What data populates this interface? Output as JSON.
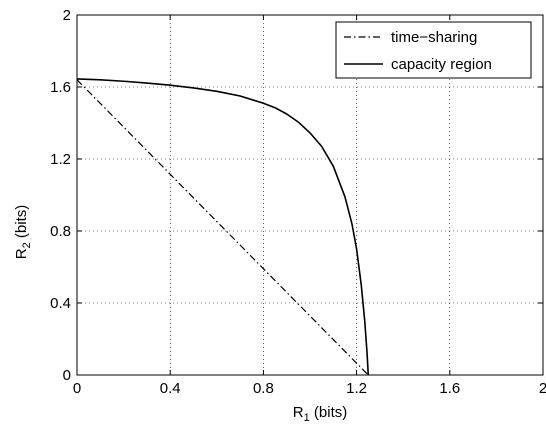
{
  "chart_data": {
    "type": "line",
    "xlabel": {
      "main": "R",
      "sub": "1",
      "unit": " (bits)"
    },
    "ylabel": {
      "main": "R",
      "sub": "2",
      "unit": " (bits)"
    },
    "xlim": [
      0,
      2
    ],
    "ylim": [
      0,
      2
    ],
    "xticks": [
      0,
      0.4,
      0.8,
      1.2,
      1.6,
      2
    ],
    "yticks": [
      0,
      0.4,
      0.8,
      1.2,
      1.6,
      2
    ],
    "xtick_labels": [
      "0",
      "0.4",
      "0.8",
      "1.2",
      "1.6",
      "2"
    ],
    "ytick_labels": [
      "0",
      "0.4",
      "0.8",
      "1.2",
      "1.6",
      "2"
    ],
    "grid": true,
    "legend_position": "top-right",
    "series": [
      {
        "name": "time−sharing",
        "style": "dash-dot",
        "color": "#000000",
        "points": [
          [
            0,
            1.64
          ],
          [
            1.25,
            0
          ]
        ]
      },
      {
        "name": "capacity region",
        "style": "solid",
        "color": "#000000",
        "points": [
          [
            0,
            1.645
          ],
          [
            0.1,
            1.64
          ],
          [
            0.2,
            1.632
          ],
          [
            0.3,
            1.622
          ],
          [
            0.4,
            1.61
          ],
          [
            0.5,
            1.595
          ],
          [
            0.6,
            1.576
          ],
          [
            0.7,
            1.55
          ],
          [
            0.8,
            1.51
          ],
          [
            0.85,
            1.485
          ],
          [
            0.9,
            1.45
          ],
          [
            0.95,
            1.405
          ],
          [
            1.0,
            1.345
          ],
          [
            1.05,
            1.27
          ],
          [
            1.1,
            1.16
          ],
          [
            1.15,
            0.99
          ],
          [
            1.18,
            0.84
          ],
          [
            1.2,
            0.7
          ],
          [
            1.22,
            0.5
          ],
          [
            1.235,
            0.3
          ],
          [
            1.245,
            0.12
          ],
          [
            1.25,
            0
          ]
        ]
      }
    ]
  }
}
